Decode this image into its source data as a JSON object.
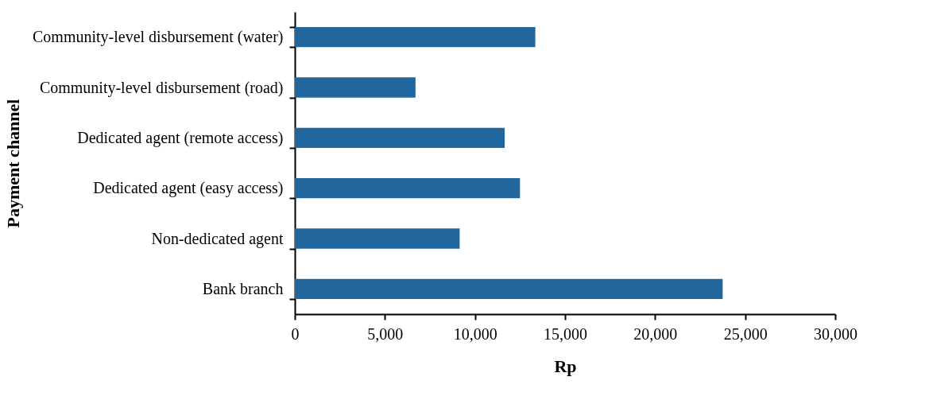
{
  "chart_data": {
    "type": "bar",
    "orientation": "horizontal",
    "xlabel": "Rp",
    "ylabel": "Payment channel",
    "categories": [
      "Community-level disbursement (water)",
      "Community-level disbursement (road)",
      "Dedicated agent (remote access)",
      "Dedicated agent (easy access)",
      "Non-dedicated agent",
      "Bank branch"
    ],
    "values": [
      13350,
      6700,
      11650,
      12500,
      9150,
      23750
    ],
    "color": "#21679e",
    "xlim": [
      0,
      30000
    ],
    "xticks": [
      0,
      {
        "value": 5000,
        "label": "5,000"
      },
      {
        "value": 10000,
        "label": "10,000"
      },
      {
        "value": 15000,
        "label": "15,000"
      },
      {
        "value": 20000,
        "label": "20,000"
      },
      {
        "value": 25000,
        "label": "25,000"
      },
      {
        "value": 30000,
        "label": "30,000"
      }
    ],
    "grid": false
  }
}
